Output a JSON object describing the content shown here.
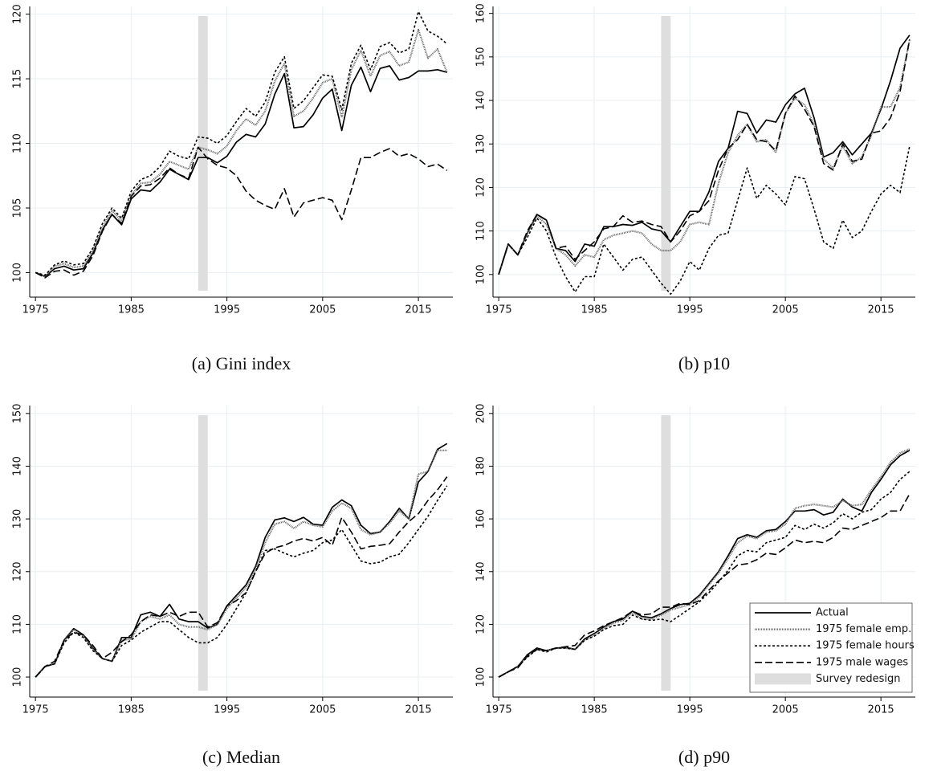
{
  "chart_data": [
    {
      "type": "line",
      "caption": "(a) Gini index",
      "x": [
        1975,
        1976,
        1977,
        1978,
        1979,
        1980,
        1981,
        1982,
        1983,
        1984,
        1985,
        1986,
        1987,
        1988,
        1989,
        1990,
        1991,
        1992,
        1993,
        1994,
        1995,
        1996,
        1997,
        1998,
        1999,
        2000,
        2001,
        2002,
        2003,
        2004,
        2005,
        2006,
        2007,
        2008,
        2009,
        2010,
        2011,
        2012,
        2013,
        2014,
        2015,
        2016,
        2017,
        2018
      ],
      "xlim": [
        1974.4,
        2018.6
      ],
      "xticks": [
        1975,
        1985,
        1995,
        2005,
        2015
      ],
      "ylim": [
        98.1,
        120.6
      ],
      "yticks": [
        100,
        105,
        110,
        115,
        120
      ],
      "grid": true,
      "shade": [
        1992,
        1993
      ],
      "shade_color": "#dedede",
      "series": [
        {
          "color": "#000000",
          "dash": "solid",
          "values": [
            100,
            99.7,
            100.3,
            100.5,
            100.2,
            100.3,
            101.5,
            103.3,
            104.5,
            103.7,
            105.7,
            106.4,
            106.3,
            107,
            108,
            107.6,
            107.2,
            108.9,
            108.9,
            108.5,
            109,
            110.1,
            110.7,
            110.5,
            111.5,
            113.8,
            115.4,
            111.2,
            111.3,
            112.2,
            113.5,
            114.2,
            111,
            114.5,
            115.9,
            114,
            115.8,
            116,
            114.9,
            115.1,
            115.6,
            115.6,
            115.7,
            115.5
          ]
        },
        {
          "color": "#666666",
          "dash": "dotted",
          "values": [
            100,
            99.7,
            100.5,
            100.7,
            100.4,
            100.5,
            101.7,
            103.5,
            104.8,
            104.0,
            106.0,
            106.9,
            107.0,
            107.6,
            108.6,
            108.3,
            108.0,
            109.7,
            109.5,
            109.2,
            109.8,
            111.0,
            111.9,
            111.4,
            112.5,
            114.8,
            116.2,
            112.1,
            112.5,
            113.5,
            114.7,
            115.0,
            112.0,
            115.7,
            117.2,
            115.2,
            116.8,
            117.1,
            116.0,
            116.3,
            118.8,
            116.6,
            117.3,
            115.5
          ]
        },
        {
          "color": "#000000",
          "dash": "short",
          "values": [
            100,
            99.8,
            100.6,
            100.9,
            100.6,
            100.7,
            101.9,
            103.8,
            105.0,
            104.2,
            106.3,
            107.2,
            107.5,
            108.2,
            109.4,
            109.0,
            108.8,
            110.5,
            110.4,
            110.0,
            110.6,
            111.7,
            112.7,
            112.1,
            113.2,
            115.5,
            116.7,
            112.7,
            113.3,
            114.3,
            115.3,
            115.2,
            112.6,
            116.2,
            117.6,
            115.7,
            117.5,
            117.8,
            117.0,
            117.3,
            120.2,
            118.7,
            118.3,
            117.7
          ]
        },
        {
          "color": "#000000",
          "dash": "long",
          "values": [
            100,
            99.6,
            100.1,
            100.2,
            99.8,
            100.1,
            101.3,
            103.2,
            104.5,
            103.8,
            105.9,
            106.7,
            106.8,
            107.3,
            108.1,
            107.6,
            107.3,
            109.7,
            108.8,
            108.3,
            108.1,
            107.5,
            106.3,
            105.6,
            105.2,
            104.9,
            106.5,
            104.3,
            105.4,
            105.6,
            105.8,
            105.6,
            104.1,
            106.4,
            108.9,
            108.9,
            109.3,
            109.6,
            109.0,
            109.2,
            108.8,
            108.2,
            108.4,
            107.9
          ]
        }
      ]
    },
    {
      "type": "line",
      "caption": "(b) p10",
      "x": [
        1975,
        1976,
        1977,
        1978,
        1979,
        1980,
        1981,
        1982,
        1983,
        1984,
        1985,
        1986,
        1987,
        1988,
        1989,
        1990,
        1991,
        1992,
        1993,
        1994,
        1995,
        1996,
        1997,
        1998,
        1999,
        2000,
        2001,
        2002,
        2003,
        2004,
        2005,
        2006,
        2007,
        2008,
        2009,
        2010,
        2011,
        2012,
        2013,
        2014,
        2015,
        2016,
        2017,
        2018
      ],
      "xlim": [
        1974.4,
        2018.6
      ],
      "xticks": [
        1975,
        1985,
        1995,
        2005,
        2015
      ],
      "ylim": [
        94.8,
        161.6
      ],
      "yticks": [
        100,
        110,
        120,
        130,
        140,
        150,
        160
      ],
      "grid": true,
      "shade": [
        1992,
        1993
      ],
      "shade_color": "#dedede",
      "series": [
        {
          "color": "#000000",
          "dash": "solid",
          "values": [
            100,
            107,
            104.5,
            109.5,
            113.8,
            112.5,
            106,
            105.5,
            103,
            107,
            106.5,
            111,
            111,
            111.5,
            111.3,
            112,
            110.5,
            110,
            107.5,
            111,
            114.5,
            114.5,
            119,
            126,
            129,
            137.5,
            137,
            132.5,
            135.5,
            135,
            139,
            141.5,
            142.8,
            136,
            127,
            128,
            130.5,
            127.5,
            130,
            132.5,
            138,
            144.5,
            152,
            155
          ]
        },
        {
          "color": "#666666",
          "dash": "dotted",
          "values": [
            100,
            107,
            104.5,
            109.5,
            113.5,
            111.5,
            106,
            104.5,
            102,
            104.5,
            104,
            108,
            109,
            109.5,
            110,
            109.5,
            107,
            105.5,
            105.5,
            107.5,
            111.5,
            112,
            111.5,
            121,
            128,
            132,
            134.5,
            130.5,
            131,
            128,
            137,
            140.5,
            139,
            134.5,
            126.5,
            124.5,
            129.5,
            125.5,
            127,
            132,
            138.5,
            138.5,
            143,
            154
          ]
        },
        {
          "color": "#000000",
          "dash": "short",
          "values": [
            100,
            107,
            104.5,
            108.5,
            113,
            110,
            104,
            99.5,
            96,
            99.5,
            99.5,
            107,
            104,
            101,
            103.5,
            104,
            101,
            98,
            95.5,
            98.5,
            103,
            101,
            106,
            109,
            109.5,
            117,
            124.5,
            117.5,
            120.5,
            118.5,
            116,
            122.5,
            122,
            115,
            107.5,
            106,
            112.5,
            108.5,
            110,
            114.5,
            118.5,
            120.5,
            118.8,
            129.5
          ]
        },
        {
          "color": "#000000",
          "dash": "long",
          "values": [
            100,
            107,
            104.5,
            110,
            113.8,
            112.5,
            106,
            106.5,
            103.5,
            105.5,
            107.5,
            110.5,
            111,
            113.5,
            112,
            112.3,
            111.5,
            111,
            107.5,
            110,
            113.5,
            114.5,
            117,
            124,
            129,
            131,
            134.5,
            131,
            130.5,
            128.5,
            137,
            141,
            138,
            134,
            125.5,
            124,
            130,
            126,
            126.5,
            132.5,
            133,
            136,
            142,
            154
          ]
        }
      ]
    },
    {
      "type": "line",
      "caption": "(c) Median",
      "x": [
        1975,
        1976,
        1977,
        1978,
        1979,
        1980,
        1981,
        1982,
        1983,
        1984,
        1985,
        1986,
        1987,
        1988,
        1989,
        1990,
        1991,
        1992,
        1993,
        1994,
        1995,
        1996,
        1997,
        1998,
        1999,
        2000,
        2001,
        2002,
        2003,
        2004,
        2005,
        2006,
        2007,
        2008,
        2009,
        2010,
        2011,
        2012,
        2013,
        2014,
        2015,
        2016,
        2017,
        2018
      ],
      "xlim": [
        1974.4,
        2018.6
      ],
      "xticks": [
        1975,
        1985,
        1995,
        2005,
        2015
      ],
      "ylim": [
        96.2,
        151.5
      ],
      "yticks": [
        100,
        110,
        120,
        130,
        140,
        150
      ],
      "grid": true,
      "shade": [
        1992,
        1993
      ],
      "shade_color": "#dedede",
      "series": [
        {
          "color": "#000000",
          "dash": "solid",
          "values": [
            100,
            102,
            102.5,
            107,
            109.2,
            108,
            105.5,
            103.5,
            103,
            107.5,
            107.5,
            111.8,
            112.3,
            111.5,
            113.8,
            111,
            110.5,
            110.5,
            109.3,
            110,
            113.5,
            115.5,
            117.5,
            121,
            126.5,
            129.8,
            130.2,
            129.5,
            130.3,
            129,
            128.8,
            132.2,
            133.6,
            132.5,
            128.8,
            127.2,
            127.5,
            129.5,
            132,
            130,
            137,
            139,
            143.2,
            144.3
          ]
        },
        {
          "color": "#666666",
          "dash": "dotted",
          "values": [
            100,
            102,
            102.5,
            106.8,
            109,
            107.8,
            105.3,
            103.5,
            103,
            107,
            107.2,
            110.5,
            111.5,
            111,
            111.8,
            110,
            109.5,
            109.5,
            109,
            110,
            113,
            115,
            117,
            120.5,
            125.5,
            129,
            129.5,
            128.2,
            129.5,
            128.8,
            128.5,
            131.5,
            133,
            132,
            128,
            127,
            127.5,
            129.2,
            131.5,
            130,
            138.5,
            139,
            143,
            143
          ]
        },
        {
          "color": "#000000",
          "dash": "short",
          "values": [
            100,
            102,
            102.5,
            106.5,
            108.5,
            107.5,
            105,
            103.5,
            103,
            106,
            107,
            108.5,
            109.5,
            110.5,
            110.5,
            109,
            107.5,
            106.5,
            106.5,
            107.5,
            110,
            113,
            116,
            120,
            124,
            124.3,
            123.5,
            122.8,
            123.5,
            124,
            125.5,
            126,
            128,
            125,
            122,
            121.5,
            121.8,
            122.8,
            123.3,
            125.5,
            128,
            130.5,
            133.5,
            136.3
          ]
        },
        {
          "color": "#000000",
          "dash": "long",
          "values": [
            100,
            102,
            103,
            107,
            108.5,
            108,
            106,
            103.5,
            104.7,
            106.7,
            108,
            110.5,
            111.8,
            111.5,
            112.3,
            111.5,
            112.3,
            112.3,
            109.5,
            110.3,
            113.5,
            114.5,
            116,
            120,
            123.5,
            124.5,
            125,
            125.8,
            126.3,
            125.8,
            126.5,
            125,
            130.3,
            127.5,
            124.3,
            124.8,
            125,
            125.3,
            127.5,
            129.5,
            131,
            133.5,
            135.5,
            138
          ]
        }
      ]
    },
    {
      "type": "line",
      "caption": "(d) p90",
      "x": [
        1975,
        1976,
        1977,
        1978,
        1979,
        1980,
        1981,
        1982,
        1983,
        1984,
        1985,
        1986,
        1987,
        1988,
        1989,
        1990,
        1991,
        1992,
        1993,
        1994,
        1995,
        1996,
        1997,
        1998,
        1999,
        2000,
        2001,
        2002,
        2003,
        2004,
        2005,
        2006,
        2007,
        2008,
        2009,
        2010,
        2011,
        2012,
        2013,
        2014,
        2015,
        2016,
        2017,
        2018
      ],
      "xlim": [
        1974.4,
        2018.6
      ],
      "xticks": [
        1975,
        1985,
        1995,
        2005,
        2015
      ],
      "ylim": [
        92.4,
        203
      ],
      "yticks": [
        100,
        120,
        140,
        160,
        180,
        200
      ],
      "grid": true,
      "shade": [
        1992,
        1993
      ],
      "shade_color": "#dedede",
      "legend": "lower right",
      "shade_label": "Survey redesign",
      "series": [
        {
          "name": "Actual",
          "color": "#000000",
          "dash": "solid",
          "values": [
            100,
            102,
            104,
            108.5,
            111,
            110,
            111,
            111.3,
            110.5,
            114.5,
            116.5,
            119,
            121,
            122,
            125,
            123,
            122.5,
            124,
            126,
            127.5,
            128,
            131,
            135.5,
            140,
            146,
            152.5,
            154,
            153,
            155.5,
            156,
            159,
            163,
            163,
            163.5,
            161.5,
            162.5,
            167.5,
            164.5,
            163,
            170,
            175,
            180.5,
            184,
            186
          ]
        },
        {
          "name": "1975 female emp.",
          "color": "#666666",
          "dash": "dotted",
          "values": [
            100,
            102,
            104,
            108,
            110.5,
            110,
            111,
            111,
            110.5,
            114,
            116,
            118.5,
            120.5,
            121.5,
            124.5,
            122,
            122,
            123.5,
            125.5,
            126.5,
            127.5,
            130.5,
            135,
            139.5,
            145,
            151,
            153.5,
            152.5,
            155,
            155.5,
            158,
            164,
            165,
            165.5,
            165,
            164.5,
            167,
            165,
            165.5,
            171,
            176,
            181.5,
            185,
            186.5
          ]
        },
        {
          "name": "1975 female hours",
          "color": "#000000",
          "dash": "short",
          "values": [
            100,
            102,
            104,
            107.5,
            110.5,
            109.5,
            111,
            111,
            110.5,
            114,
            115.5,
            118,
            119.5,
            120,
            123.5,
            122,
            121.5,
            122,
            121,
            123.5,
            126,
            128.5,
            132,
            136,
            140.5,
            146,
            148,
            147.5,
            151,
            152,
            153,
            157.5,
            156,
            158,
            156.5,
            158.5,
            162,
            160,
            162.5,
            163.5,
            167.5,
            170,
            175,
            178
          ]
        },
        {
          "name": "1975 male wages",
          "color": "#000000",
          "dash": "long",
          "values": [
            100,
            102,
            103.5,
            108,
            110.5,
            110,
            111,
            111.5,
            112,
            116,
            117.5,
            119.5,
            121,
            122.5,
            125,
            123.5,
            124,
            126.5,
            126.5,
            128,
            127.5,
            129,
            133,
            136.5,
            139.5,
            142.5,
            143,
            144.5,
            147,
            146.5,
            149,
            152,
            151,
            151.5,
            151,
            153,
            156.5,
            156,
            157.5,
            159,
            160.5,
            163,
            163,
            169.5
          ]
        }
      ]
    }
  ]
}
